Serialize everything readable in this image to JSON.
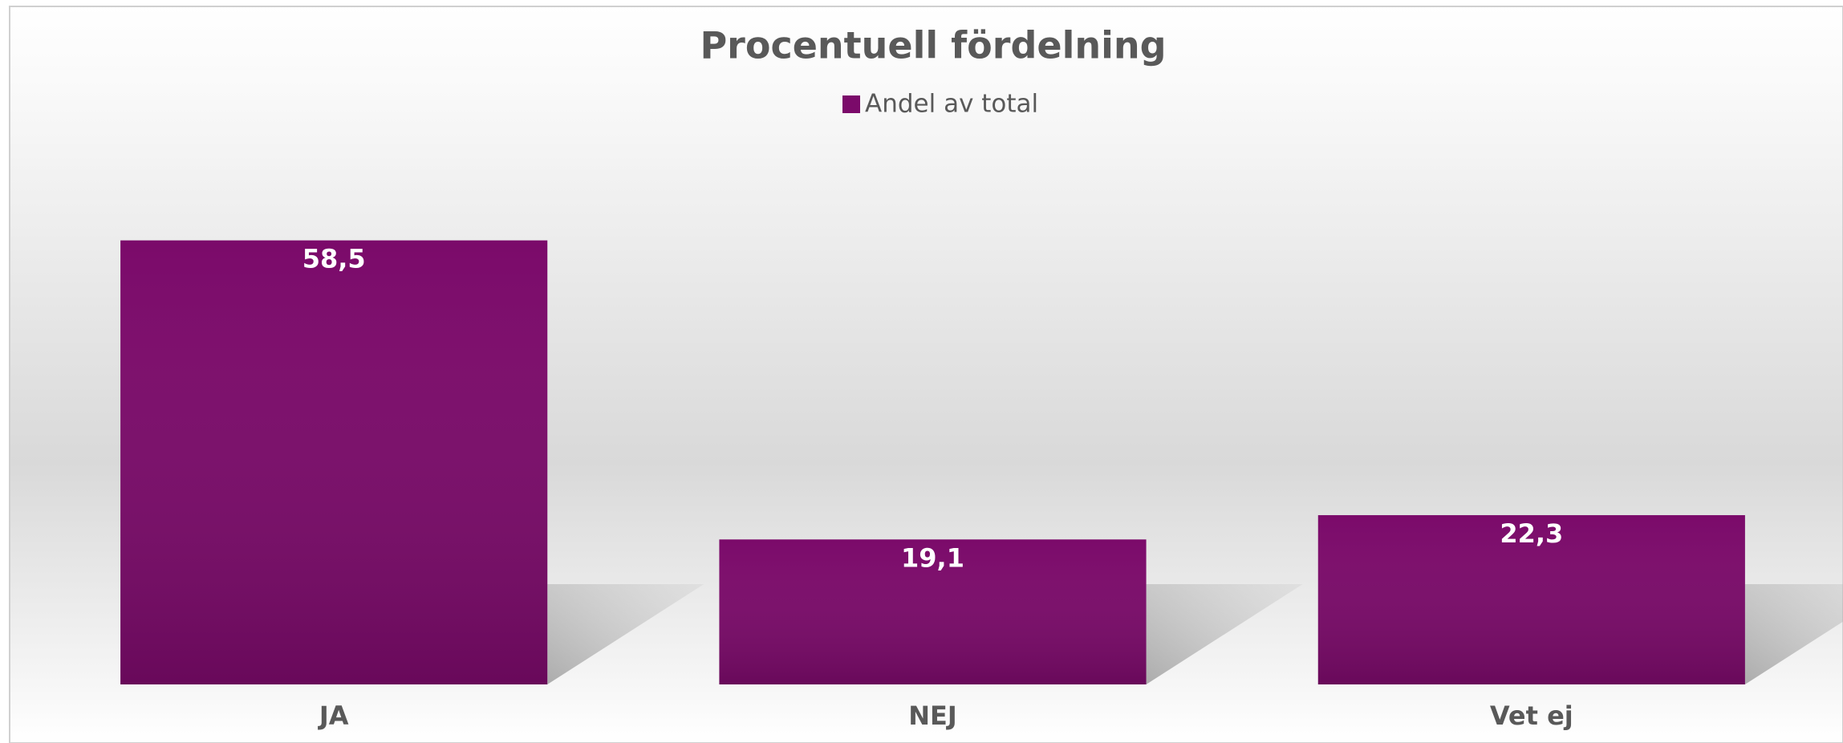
{
  "chart_data": {
    "type": "bar",
    "title": "Procentuell fördelning",
    "categories": [
      "JA",
      "NEJ",
      "Vet ej"
    ],
    "series": [
      {
        "name": "Andel av total",
        "color": "#7b0a6a",
        "values": [
          58.5,
          19.1,
          22.3
        ],
        "value_labels": [
          "58,5",
          "19,1",
          "22,3"
        ]
      }
    ],
    "legend": "top"
  }
}
